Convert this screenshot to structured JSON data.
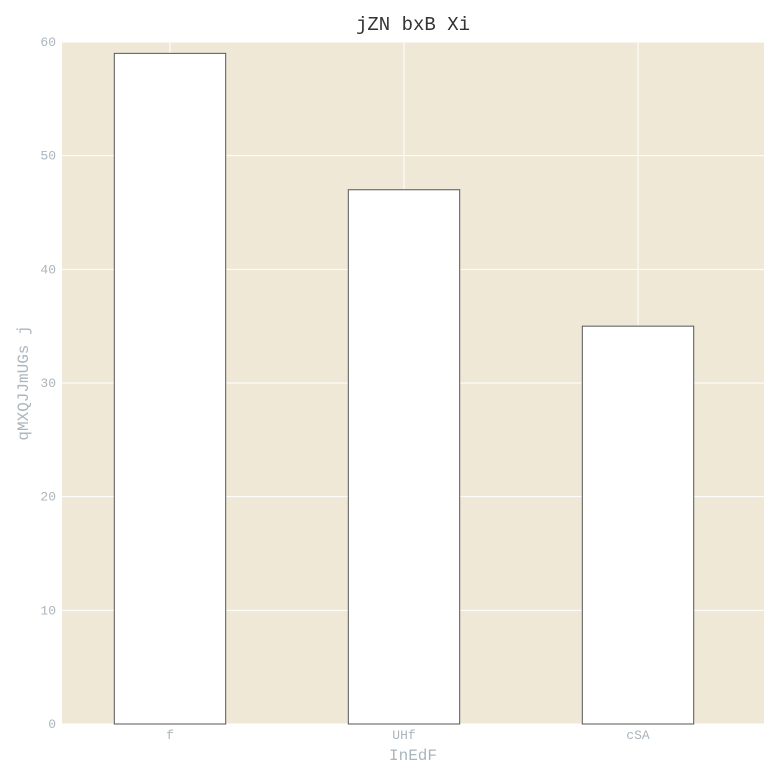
{
  "chart_data": {
    "type": "bar",
    "title": "jZN bxB Xi",
    "xlabel": "InEdF",
    "ylabel": "qMXQJJmUGs  j",
    "categories": [
      "f",
      "UHf",
      "cSA"
    ],
    "values": [
      59,
      47,
      35
    ],
    "ylim": [
      0,
      60
    ],
    "yticks": [
      0,
      10,
      20,
      30,
      40,
      50,
      60
    ],
    "grid": true,
    "legend": "none",
    "colors": {
      "plot_background": "#efe8d7",
      "bar_fill": "#ffffff",
      "bar_edge": "#555555",
      "grid": "#ffffff",
      "tick_text": "#aab5bd",
      "title_text": "#333333"
    }
  }
}
